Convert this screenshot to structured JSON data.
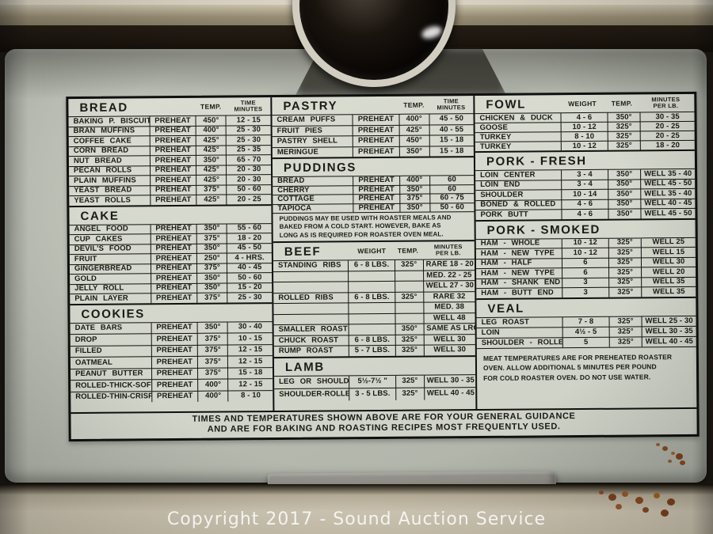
{
  "watermark": "Copyright 2017 - Sound Auction Service",
  "chart": {
    "headers": {
      "temp": "TEMP.",
      "weight": "WEIGHT",
      "time": [
        "TIME",
        "MINUTES"
      ],
      "minutes_per_lb": [
        "MINUTES",
        "PER LB."
      ]
    },
    "sections": {
      "bread": {
        "title": "BREAD",
        "rows": [
          [
            "BAKING P. BISCUITS",
            "PREHEAT",
            "450°",
            "12 - 15"
          ],
          [
            "BRAN MUFFINS",
            "PREHEAT",
            "400°",
            "25 - 30"
          ],
          [
            "COFFEE CAKE",
            "PREHEAT",
            "425°",
            "25 - 30"
          ],
          [
            "CORN BREAD",
            "PREHEAT",
            "425°",
            "25 - 35"
          ],
          [
            "NUT BREAD",
            "PREHEAT",
            "350°",
            "65 - 70"
          ],
          [
            "PECAN ROLLS",
            "PREHEAT",
            "425°",
            "20 - 30"
          ],
          [
            "PLAIN MUFFINS",
            "PREHEAT",
            "425°",
            "20 - 30"
          ],
          [
            "YEAST BREAD",
            "PREHEAT",
            "375°",
            "50 - 60"
          ],
          [
            "YEAST ROLLS",
            "PREHEAT",
            "425°",
            "20 - 25"
          ]
        ]
      },
      "cake": {
        "title": "CAKE",
        "rows": [
          [
            "ANGEL FOOD",
            "PREHEAT",
            "350°",
            "55 - 60"
          ],
          [
            "CUP CAKES",
            "PREHEAT",
            "375°",
            "18 - 20"
          ],
          [
            "DEVIL'S FOOD",
            "PREHEAT",
            "350°",
            "45 - 50"
          ],
          [
            "FRUIT",
            "PREHEAT",
            "250°",
            "4 - HRS."
          ],
          [
            "GINGERBREAD",
            "PREHEAT",
            "375°",
            "40 - 45"
          ],
          [
            "GOLD",
            "PREHEAT",
            "350°",
            "50 - 60"
          ],
          [
            "JELLY ROLL",
            "PREHEAT",
            "350°",
            "15 - 20"
          ],
          [
            "PLAIN LAYER",
            "PREHEAT",
            "375°",
            "25 - 30"
          ]
        ]
      },
      "cookies": {
        "title": "COOKIES",
        "rows": [
          [
            "DATE BARS",
            "PREHEAT",
            "350°",
            "30 - 40"
          ],
          [
            "DROP",
            "PREHEAT",
            "375°",
            "10 - 15"
          ],
          [
            "FILLED",
            "PREHEAT",
            "375°",
            "12 - 15"
          ],
          [
            "OATMEAL",
            "PREHEAT",
            "375°",
            "12 - 15"
          ],
          [
            "PEANUT BUTTER",
            "PREHEAT",
            "375°",
            "15 - 18"
          ],
          [
            "ROLLED-THICK-SOFT",
            "PREHEAT",
            "400°",
            "12 - 15"
          ],
          [
            "ROLLED-THIN-CRISP",
            "PREHEAT",
            "400°",
            "8 - 10"
          ]
        ]
      },
      "pastry": {
        "title": "PASTRY",
        "rows": [
          [
            "CREAM PUFFS",
            "PREHEAT",
            "400°",
            "45 - 50"
          ],
          [
            "FRUIT PIES",
            "PREHEAT",
            "425°",
            "40 - 55"
          ],
          [
            "PASTRY SHELL",
            "PREHEAT",
            "450°",
            "15 - 18"
          ],
          [
            "MERINGUE",
            "PREHEAT",
            "350°",
            "15 - 18"
          ]
        ]
      },
      "puddings": {
        "title": "PUDDINGS",
        "rows": [
          [
            "BREAD",
            "PREHEAT",
            "400°",
            "60"
          ],
          [
            "CHERRY",
            "PREHEAT",
            "350°",
            "60"
          ],
          [
            "COTTAGE",
            "PREHEAT",
            "375°",
            "60 - 75"
          ],
          [
            "TAPIOCA",
            "PREHEAT",
            "350°",
            "50 - 60"
          ]
        ],
        "note": [
          "PUDDINGS MAY BE USED WITH ROASTER MEALS AND",
          "BAKED FROM A COLD START.  HOWEVER, BAKE AS",
          "LONG AS IS REQUIRED FOR ROASTER OVEN MEAL."
        ]
      },
      "beef": {
        "title": "BEEF",
        "rows": [
          [
            "STANDING RIBS",
            "6 - 8 LBS.",
            "325°",
            "RARE 18 - 20"
          ],
          [
            "",
            "",
            "",
            "MED. 22 - 25"
          ],
          [
            "",
            "",
            "",
            "WELL 27 - 30"
          ],
          [
            "ROLLED RIBS",
            "6 - 8 LBS.",
            "325°",
            "RARE  32"
          ],
          [
            "",
            "",
            "",
            "MED.  38"
          ],
          [
            "",
            "",
            "",
            "WELL  48"
          ],
          [
            "SMALLER ROAST",
            "",
            "350°",
            "SAME AS LRG."
          ],
          [
            "CHUCK ROAST",
            "6 - 8 LBS.",
            "325°",
            "WELL  30"
          ],
          [
            "RUMP ROAST",
            "5 - 7 LBS.",
            "325°",
            "WELL  30"
          ]
        ]
      },
      "lamb": {
        "title": "LAMB",
        "rows": [
          [
            "LEG OR SHOULDER",
            "5½-7½ \"",
            "325°",
            "WELL 30 - 35"
          ],
          [
            "SHOULDER-ROLLED",
            "3 - 5 LBS.",
            "325°",
            "WELL 40 - 45"
          ]
        ]
      },
      "fowl": {
        "title": "FOWL",
        "rows": [
          [
            "CHICKEN & DUCK",
            "4 - 6",
            "350°",
            "30 - 35"
          ],
          [
            "GOOSE",
            "10 - 12",
            "325°",
            "20 - 25"
          ],
          [
            "TURKEY",
            "8 - 10",
            "325°",
            "20 - 25"
          ],
          [
            "TURKEY",
            "10 - 12",
            "325°",
            "18 - 20"
          ]
        ]
      },
      "pork_fresh": {
        "title": "PORK - FRESH",
        "rows": [
          [
            "LOIN CENTER",
            "3 - 4",
            "350°",
            "WELL 35 - 40"
          ],
          [
            "LOIN END",
            "3 - 4",
            "350°",
            "WELL 45 - 50"
          ],
          [
            "SHOULDER",
            "10 - 14",
            "350°",
            "WELL 35 - 40"
          ],
          [
            "BONED & ROLLED",
            "4 - 6",
            "350°",
            "WELL 40 - 45"
          ],
          [
            "PORK BUTT",
            "4 - 6",
            "350°",
            "WELL 45 - 50"
          ]
        ]
      },
      "pork_smoked": {
        "title": "PORK - SMOKED",
        "rows": [
          [
            "HAM - WHOLE",
            "10 - 12",
            "325°",
            "WELL  25"
          ],
          [
            "HAM - NEW  TYPE",
            "10 - 12",
            "325°",
            "WELL  15"
          ],
          [
            "HAM - HALF",
            "6",
            "325°",
            "WELL  30"
          ],
          [
            "HAM - NEW  TYPE",
            "6",
            "325°",
            "WELL  20"
          ],
          [
            "HAM - SHANK  END",
            "3",
            "325°",
            "WELL  35"
          ],
          [
            "HAM - BUTT  END",
            "3",
            "325°",
            "WELL  35"
          ]
        ]
      },
      "veal": {
        "title": "VEAL",
        "rows": [
          [
            "LEG ROAST",
            "7 - 8",
            "325°",
            "WELL 25 - 30"
          ],
          [
            "LOIN",
            "4½ - 5",
            "325°",
            "WELL 30 - 35"
          ],
          [
            "SHOULDER - ROLLED",
            "5",
            "325°",
            "WELL 40 - 45"
          ]
        ]
      }
    },
    "meat_note": [
      "MEAT TEMPERATURES ARE FOR PREHEATED ROASTER",
      "OVEN.  ALLOW ADDITIONAL 5 MINUTES PER POUND",
      "FOR COLD ROASTER OVEN.  DO NOT USE WATER."
    ],
    "footer": [
      "TIMES AND TEMPERATURES SHOWN ABOVE ARE FOR YOUR GENERAL GUIDANCE",
      "AND ARE FOR BAKING AND ROASTING RECIPES MOST FREQUENTLY USED."
    ]
  }
}
